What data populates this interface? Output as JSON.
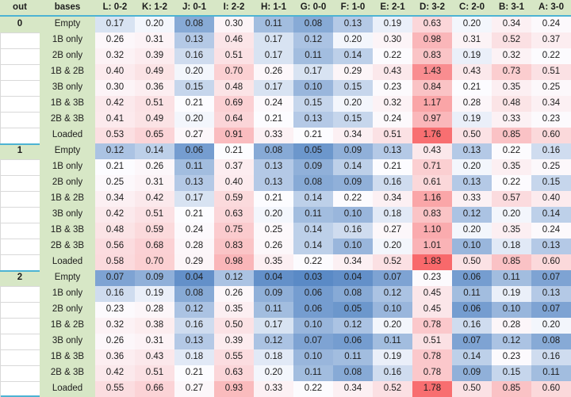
{
  "colors": {
    "header_fill": "#d7e7c6",
    "separator": "#4db3d3",
    "gridline": "#d9d9d9",
    "text": "#1c1c1c",
    "scale_low": "#5a8ac6",
    "scale_mid": "#fcfcff",
    "scale_high": "#f8696b"
  },
  "chart_data": {
    "type": "heatmap",
    "corner_label": "out",
    "row_label_header": "bases",
    "value_format": "0.00",
    "columns": [
      "L: 0-2",
      "K: 1-2",
      "J: 0-1",
      "I: 2-2",
      "H: 1-1",
      "G: 0-0",
      "F: 1-0",
      "E: 2-1",
      "D: 3-2",
      "C: 2-0",
      "B: 3-1",
      "A: 3-0"
    ],
    "color_scale": {
      "low_color": "#5a8ac6",
      "mid_color": "#fcfcff",
      "high_color": "#f8696b",
      "midpoint_value": 0.21
    },
    "groups": [
      {
        "out_label": "0",
        "rows": [
          {
            "bases": "Empty",
            "values": [
              0.17,
              0.2,
              0.08,
              0.3,
              0.11,
              0.08,
              0.13,
              0.19,
              0.63,
              0.2,
              0.34,
              0.24
            ]
          },
          {
            "bases": "1B only",
            "values": [
              0.26,
              0.31,
              0.13,
              0.46,
              0.17,
              0.12,
              0.2,
              0.3,
              0.98,
              0.31,
              0.52,
              0.37
            ]
          },
          {
            "bases": "2B only",
            "values": [
              0.32,
              0.39,
              0.16,
              0.51,
              0.17,
              0.11,
              0.14,
              0.22,
              0.83,
              0.19,
              0.32,
              0.22
            ]
          },
          {
            "bases": "1B & 2B",
            "values": [
              0.4,
              0.49,
              0.2,
              0.7,
              0.26,
              0.17,
              0.29,
              0.43,
              1.43,
              0.43,
              0.73,
              0.51
            ]
          },
          {
            "bases": "3B only",
            "values": [
              0.3,
              0.36,
              0.15,
              0.48,
              0.17,
              0.1,
              0.15,
              0.23,
              0.84,
              0.21,
              0.35,
              0.25
            ]
          },
          {
            "bases": "1B & 3B",
            "values": [
              0.42,
              0.51,
              0.21,
              0.69,
              0.24,
              0.15,
              0.2,
              0.32,
              1.17,
              0.28,
              0.48,
              0.34
            ]
          },
          {
            "bases": "2B & 3B",
            "values": [
              0.41,
              0.49,
              0.2,
              0.64,
              0.21,
              0.13,
              0.15,
              0.24,
              0.97,
              0.19,
              0.33,
              0.23
            ]
          },
          {
            "bases": "Loaded",
            "values": [
              0.53,
              0.65,
              0.27,
              0.91,
              0.33,
              0.21,
              0.34,
              0.51,
              1.76,
              0.5,
              0.85,
              0.6
            ]
          }
        ]
      },
      {
        "out_label": "1",
        "rows": [
          {
            "bases": "Empty",
            "values": [
              0.12,
              0.14,
              0.06,
              0.21,
              0.08,
              0.05,
              0.09,
              0.13,
              0.43,
              0.13,
              0.22,
              0.16
            ]
          },
          {
            "bases": "1B only",
            "values": [
              0.21,
              0.26,
              0.11,
              0.37,
              0.13,
              0.09,
              0.14,
              0.21,
              0.71,
              0.2,
              0.35,
              0.25
            ]
          },
          {
            "bases": "2B only",
            "values": [
              0.25,
              0.31,
              0.13,
              0.4,
              0.13,
              0.08,
              0.09,
              0.16,
              0.61,
              0.13,
              0.22,
              0.15
            ]
          },
          {
            "bases": "1B & 2B",
            "values": [
              0.34,
              0.42,
              0.17,
              0.59,
              0.21,
              0.14,
              0.22,
              0.34,
              1.16,
              0.33,
              0.57,
              0.4
            ]
          },
          {
            "bases": "3B only",
            "values": [
              0.42,
              0.51,
              0.21,
              0.63,
              0.2,
              0.11,
              0.1,
              0.18,
              0.83,
              0.12,
              0.2,
              0.14
            ]
          },
          {
            "bases": "1B & 3B",
            "values": [
              0.48,
              0.59,
              0.24,
              0.75,
              0.25,
              0.14,
              0.16,
              0.27,
              1.1,
              0.2,
              0.35,
              0.24
            ]
          },
          {
            "bases": "2B & 3B",
            "values": [
              0.56,
              0.68,
              0.28,
              0.83,
              0.26,
              0.14,
              0.1,
              0.2,
              1.01,
              0.1,
              0.18,
              0.13
            ]
          },
          {
            "bases": "Loaded",
            "values": [
              0.58,
              0.7,
              0.29,
              0.98,
              0.35,
              0.22,
              0.34,
              0.52,
              1.83,
              0.5,
              0.85,
              0.6
            ]
          }
        ]
      },
      {
        "out_label": "2",
        "rows": [
          {
            "bases": "Empty",
            "values": [
              0.07,
              0.09,
              0.04,
              0.12,
              0.04,
              0.03,
              0.04,
              0.07,
              0.23,
              0.06,
              0.11,
              0.07
            ]
          },
          {
            "bases": "1B only",
            "values": [
              0.16,
              0.19,
              0.08,
              0.26,
              0.09,
              0.06,
              0.08,
              0.12,
              0.45,
              0.11,
              0.19,
              0.13
            ]
          },
          {
            "bases": "2B only",
            "values": [
              0.23,
              0.28,
              0.12,
              0.35,
              0.11,
              0.06,
              0.05,
              0.1,
              0.45,
              0.06,
              0.1,
              0.07
            ]
          },
          {
            "bases": "1B & 2B",
            "values": [
              0.32,
              0.38,
              0.16,
              0.5,
              0.17,
              0.1,
              0.12,
              0.2,
              0.78,
              0.16,
              0.28,
              0.2
            ]
          },
          {
            "bases": "3B only",
            "values": [
              0.26,
              0.31,
              0.13,
              0.39,
              0.12,
              0.07,
              0.06,
              0.11,
              0.51,
              0.07,
              0.12,
              0.08
            ]
          },
          {
            "bases": "1B & 3B",
            "values": [
              0.36,
              0.43,
              0.18,
              0.55,
              0.18,
              0.1,
              0.11,
              0.19,
              0.78,
              0.14,
              0.23,
              0.16
            ]
          },
          {
            "bases": "2B & 3B",
            "values": [
              0.42,
              0.51,
              0.21,
              0.63,
              0.2,
              0.11,
              0.08,
              0.16,
              0.78,
              0.09,
              0.15,
              0.11
            ]
          },
          {
            "bases": "Loaded",
            "values": [
              0.55,
              0.66,
              0.27,
              0.93,
              0.33,
              0.22,
              0.34,
              0.52,
              1.78,
              0.5,
              0.85,
              0.6
            ]
          }
        ]
      }
    ]
  }
}
